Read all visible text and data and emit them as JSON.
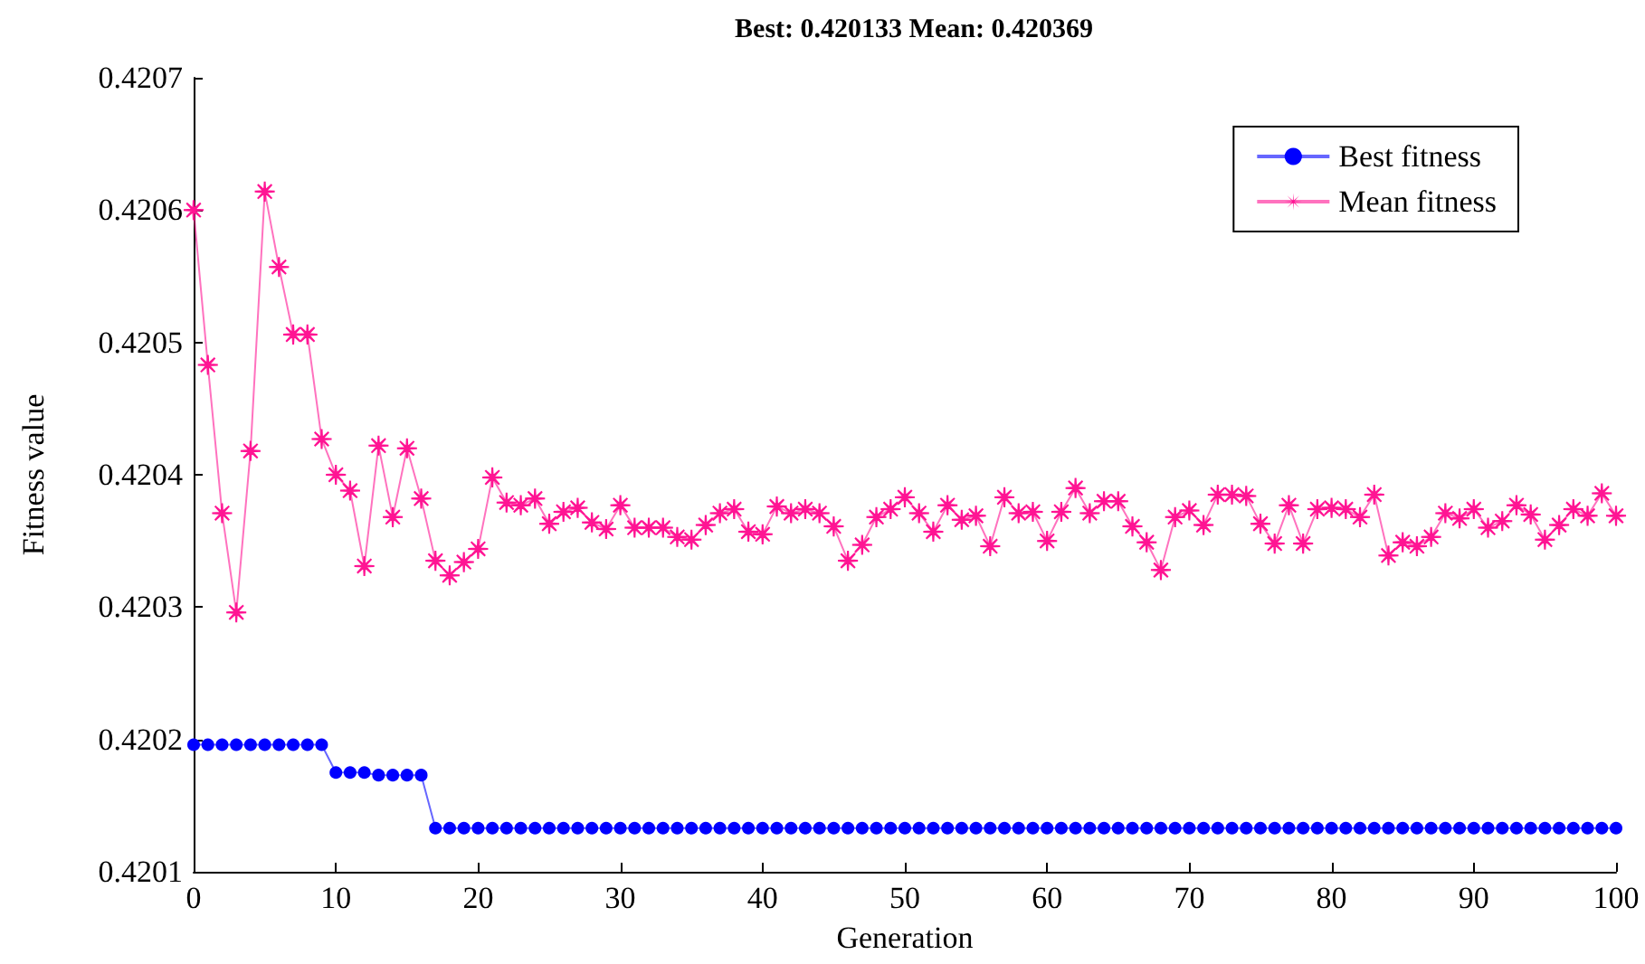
{
  "chart_data": {
    "type": "line",
    "title": "Best: 0.420133 Mean: 0.420369",
    "xlabel": "Generation",
    "ylabel": "Fitness value",
    "x": [
      0,
      1,
      2,
      3,
      4,
      5,
      6,
      7,
      8,
      9,
      10,
      11,
      12,
      13,
      14,
      15,
      16,
      17,
      18,
      19,
      20,
      21,
      22,
      23,
      24,
      25,
      26,
      27,
      28,
      29,
      30,
      31,
      32,
      33,
      34,
      35,
      36,
      37,
      38,
      39,
      40,
      41,
      42,
      43,
      44,
      45,
      46,
      47,
      48,
      49,
      50,
      51,
      52,
      53,
      54,
      55,
      56,
      57,
      58,
      59,
      60,
      61,
      62,
      63,
      64,
      65,
      66,
      67,
      68,
      69,
      70,
      71,
      72,
      73,
      74,
      75,
      76,
      77,
      78,
      79,
      80,
      81,
      82,
      83,
      84,
      85,
      86,
      87,
      88,
      89,
      90,
      91,
      92,
      93,
      94,
      95,
      96,
      97,
      98,
      99,
      100
    ],
    "series": [
      {
        "name": "Best fitness",
        "color": "#0000ff",
        "marker": "circle",
        "values": [
          0.420196,
          0.420196,
          0.420196,
          0.420196,
          0.420196,
          0.420196,
          0.420196,
          0.420196,
          0.420196,
          0.420196,
          0.420175,
          0.420175,
          0.420175,
          0.420173,
          0.420173,
          0.420173,
          0.420173,
          0.420133,
          0.420133,
          0.420133,
          0.420133,
          0.420133,
          0.420133,
          0.420133,
          0.420133,
          0.420133,
          0.420133,
          0.420133,
          0.420133,
          0.420133,
          0.420133,
          0.420133,
          0.420133,
          0.420133,
          0.420133,
          0.420133,
          0.420133,
          0.420133,
          0.420133,
          0.420133,
          0.420133,
          0.420133,
          0.420133,
          0.420133,
          0.420133,
          0.420133,
          0.420133,
          0.420133,
          0.420133,
          0.420133,
          0.420133,
          0.420133,
          0.420133,
          0.420133,
          0.420133,
          0.420133,
          0.420133,
          0.420133,
          0.420133,
          0.420133,
          0.420133,
          0.420133,
          0.420133,
          0.420133,
          0.420133,
          0.420133,
          0.420133,
          0.420133,
          0.420133,
          0.420133,
          0.420133,
          0.420133,
          0.420133,
          0.420133,
          0.420133,
          0.420133,
          0.420133,
          0.420133,
          0.420133,
          0.420133,
          0.420133,
          0.420133,
          0.420133,
          0.420133,
          0.420133,
          0.420133,
          0.420133,
          0.420133,
          0.420133,
          0.420133,
          0.420133,
          0.420133,
          0.420133,
          0.420133,
          0.420133,
          0.420133,
          0.420133,
          0.420133,
          0.420133,
          0.420133,
          0.420133
        ]
      },
      {
        "name": "Mean fitness",
        "color": "#ff1493",
        "marker": "cross",
        "values": [
          0.4206,
          0.420483,
          0.420371,
          0.420296,
          0.420418,
          0.420614,
          0.420557,
          0.420506,
          0.420506,
          0.420427,
          0.4204,
          0.420388,
          0.420331,
          0.420422,
          0.420368,
          0.42042,
          0.420382,
          0.420335,
          0.420324,
          0.420334,
          0.420344,
          0.420398,
          0.420379,
          0.420377,
          0.420382,
          0.420363,
          0.420372,
          0.420375,
          0.420364,
          0.420359,
          0.420377,
          0.42036,
          0.42036,
          0.42036,
          0.420353,
          0.420351,
          0.420362,
          0.420371,
          0.420374,
          0.420357,
          0.420355,
          0.420376,
          0.420371,
          0.420374,
          0.420371,
          0.420361,
          0.420335,
          0.420347,
          0.420368,
          0.420374,
          0.420383,
          0.420371,
          0.420357,
          0.420377,
          0.420366,
          0.420369,
          0.420346,
          0.420383,
          0.420371,
          0.420372,
          0.42035,
          0.420372,
          0.42039,
          0.420371,
          0.42038,
          0.42038,
          0.420361,
          0.420349,
          0.420328,
          0.420368,
          0.420373,
          0.420362,
          0.420385,
          0.420385,
          0.420384,
          0.420363,
          0.420348,
          0.420377,
          0.420348,
          0.420374,
          0.420375,
          0.420374,
          0.420368,
          0.420385,
          0.420339,
          0.420349,
          0.420346,
          0.420353,
          0.420371,
          0.420367,
          0.420374,
          0.42036,
          0.420365,
          0.420377,
          0.42037,
          0.420351,
          0.420362,
          0.420374,
          0.420369,
          0.420386,
          0.420369
        ]
      }
    ],
    "xlim": [
      0,
      100
    ],
    "xticks": [
      0,
      10,
      20,
      30,
      40,
      50,
      60,
      70,
      80,
      90,
      100
    ],
    "ylim": [
      0.4201,
      0.4207
    ],
    "yticks": [
      0.4201,
      0.4202,
      0.4203,
      0.4204,
      0.4205,
      0.4206,
      0.4207
    ],
    "grid": false,
    "legend": "top right",
    "line_style": "solid"
  }
}
